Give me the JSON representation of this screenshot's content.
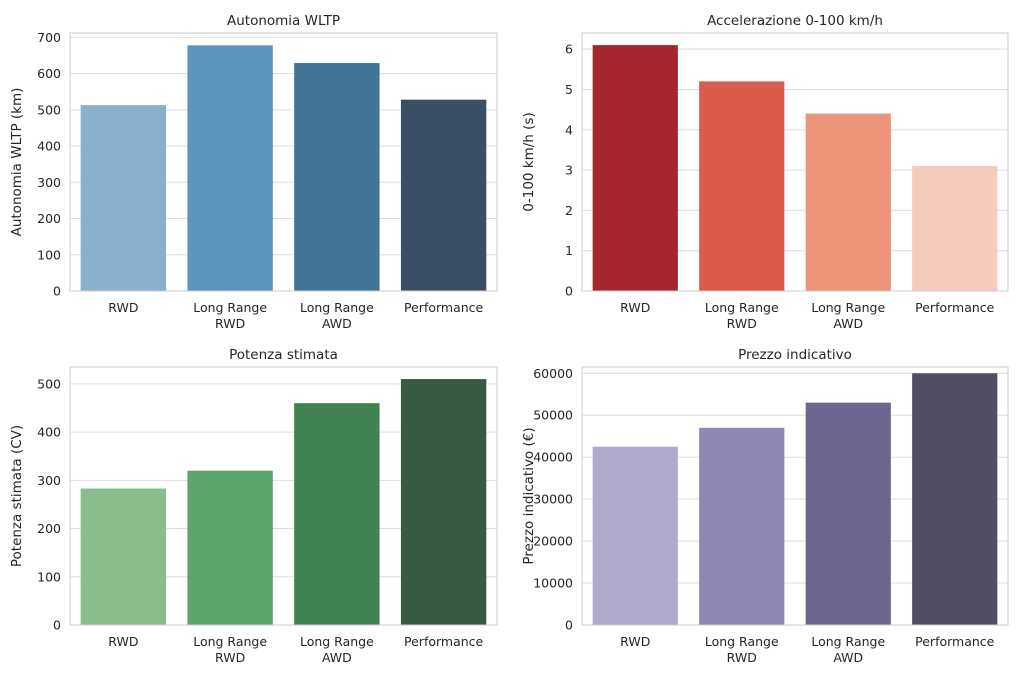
{
  "chart_data": [
    {
      "type": "bar",
      "title": "Autonomia WLTP",
      "ylabel": "Autonomia WLTP (km)",
      "xlabel": "",
      "categories": [
        [
          "RWD"
        ],
        [
          "Long Range",
          "RWD"
        ],
        [
          "Long Range",
          "AWD"
        ],
        [
          "Performance"
        ]
      ],
      "values": [
        513,
        678,
        629,
        528
      ],
      "colors": [
        "#89b0cc",
        "#5b95bd",
        "#427496",
        "#3a4f66"
      ],
      "yticks": [
        0,
        100,
        200,
        300,
        400,
        500,
        600,
        700
      ],
      "ylim": [
        0,
        712
      ],
      "grid": true
    },
    {
      "type": "bar",
      "title": "Accelerazione 0-100 km/h",
      "ylabel": "0-100 km/h (s)",
      "xlabel": "",
      "categories": [
        [
          "RWD"
        ],
        [
          "Long Range",
          "RWD"
        ],
        [
          "Long Range",
          "AWD"
        ],
        [
          "Performance"
        ]
      ],
      "values": [
        6.1,
        5.2,
        4.4,
        3.1
      ],
      "colors": [
        "#a6262d",
        "#dc5a4b",
        "#ec9477",
        "#f6cbbb"
      ],
      "yticks": [
        0,
        1,
        2,
        3,
        4,
        5,
        6
      ],
      "ylim": [
        0,
        6.4
      ],
      "grid": true
    },
    {
      "type": "bar",
      "title": "Potenza stimata",
      "ylabel": "Potenza stimata (CV)",
      "xlabel": "",
      "categories": [
        [
          "RWD"
        ],
        [
          "Long Range",
          "RWD"
        ],
        [
          "Long Range",
          "AWD"
        ],
        [
          "Performance"
        ]
      ],
      "values": [
        283,
        320,
        460,
        510
      ],
      "colors": [
        "#8abd8c",
        "#5ca46b",
        "#3f8352",
        "#385a42"
      ],
      "yticks": [
        0,
        100,
        200,
        300,
        400,
        500
      ],
      "ylim": [
        0,
        535
      ],
      "grid": true
    },
    {
      "type": "bar",
      "title": "Prezzo indicativo",
      "ylabel": "Prezzo indicativo (€)",
      "xlabel": "",
      "categories": [
        [
          "RWD"
        ],
        [
          "Long Range",
          "RWD"
        ],
        [
          "Long Range",
          "AWD"
        ],
        [
          "Performance"
        ]
      ],
      "values": [
        42500,
        47000,
        53000,
        60000
      ],
      "colors": [
        "#aeaacb",
        "#8e86b5",
        "#6e6691",
        "#524d64"
      ],
      "yticks": [
        0,
        10000,
        20000,
        30000,
        40000,
        50000,
        60000
      ],
      "ylim": [
        0,
        61500
      ],
      "grid": true
    }
  ]
}
